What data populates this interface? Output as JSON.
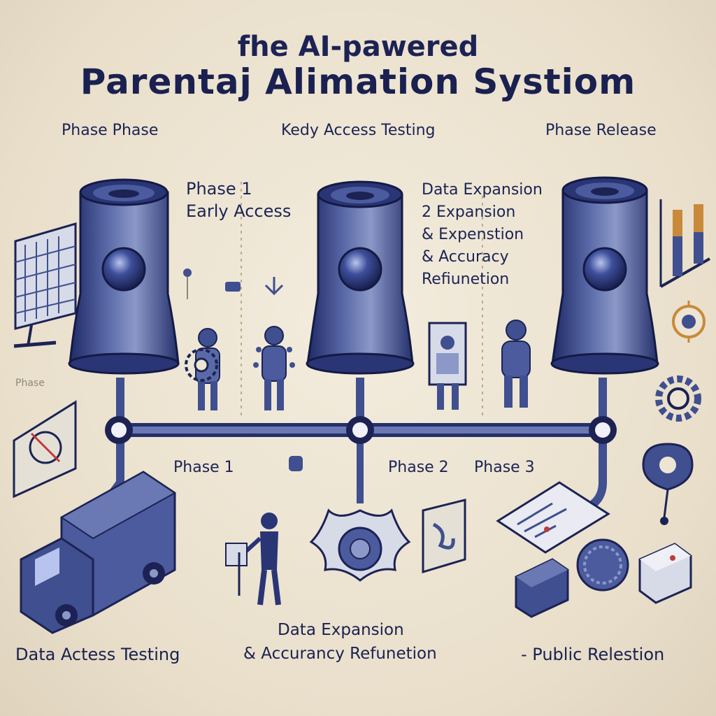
{
  "title": {
    "line1": "fhe AI-pawered",
    "line2": "Parentaj Alimation Systiom"
  },
  "top_labels": [
    "Phase Phase",
    "Kedy Access Testing",
    "Phase Relеase"
  ],
  "tower_labels": {
    "left": [
      "Phase 1",
      "Early Access"
    ],
    "middle": [
      "Data Expansion",
      "2 Expansion",
      "& Expenstion",
      "& Accuracy",
      "Refiunetion"
    ]
  },
  "side_label": "Phase",
  "phase_labels": [
    "Phase 1",
    "Phase 2",
    "Phase 3"
  ],
  "bottom_labels": {
    "left": "Data Actess Testing",
    "middle": [
      "Data Expansion",
      "& Accurancy Refunetion"
    ],
    "right": "- Public Relestion"
  },
  "icons": [
    "calendar-board-icon",
    "camera-tower-icon",
    "person-icon",
    "gear-icon",
    "truck-icon",
    "chart-icon",
    "location-pin-icon",
    "flower-gear-icon",
    "box-icon",
    "clock-chart-icon"
  ],
  "colors": {
    "navy": "#1c2354",
    "steel": "#3f4f8f",
    "accent": "#c88a3a",
    "background": "#eee4d2"
  }
}
